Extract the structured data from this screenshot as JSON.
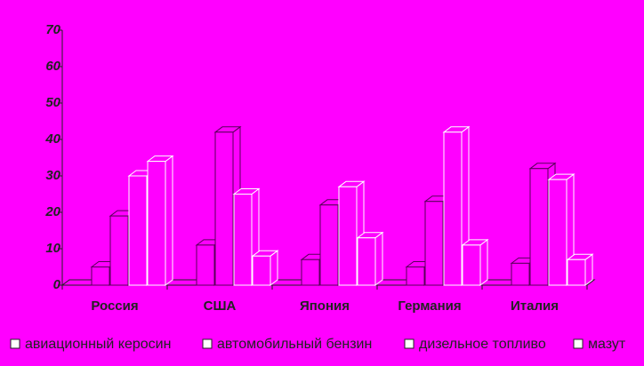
{
  "chart_data": {
    "type": "bar3d",
    "categories": [
      "Россия",
      "США",
      "Япония",
      "Германия",
      "Италия"
    ],
    "series": [
      {
        "name": "авиационный керосин",
        "color": "#5a005a",
        "values": [
          5,
          11,
          7,
          5,
          6
        ]
      },
      {
        "name": "автомобильный бензин",
        "color": "#5a005a",
        "values": [
          19,
          42,
          22,
          23,
          32
        ]
      },
      {
        "name": "дизельное топливо",
        "color": "#ffffff",
        "values": [
          30,
          25,
          27,
          42,
          29
        ]
      },
      {
        "name": "мазут",
        "color": "#ffffff",
        "values": [
          34,
          8,
          13,
          11,
          7
        ]
      }
    ],
    "ylim": [
      0,
      70
    ],
    "yticks": [
      0,
      10,
      20,
      30,
      40,
      50,
      60,
      70
    ]
  }
}
